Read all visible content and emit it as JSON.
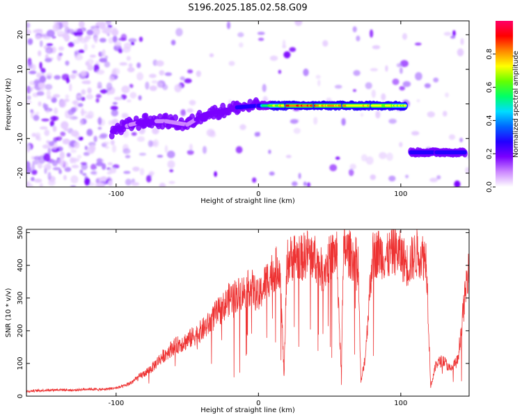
{
  "title": "S196.2025.185.02.58.G09",
  "chart_data": [
    {
      "type": "heatmap",
      "xlabel": "Height of straight line (km)",
      "ylabel": "Frequency (Hz)",
      "xlim": [
        -163,
        148
      ],
      "ylim": [
        -24,
        24
      ],
      "x_ticks": [
        -100,
        0,
        100
      ],
      "y_ticks": [
        -20,
        -10,
        0,
        10,
        20
      ],
      "colorbar": {
        "label": "Normalized spectral amplitude",
        "ticks": [
          "0.0",
          "0.2",
          "0.4",
          "0.6",
          "0.8"
        ],
        "range": [
          0,
          1
        ],
        "colormap": [
          "#ffffff",
          "#cc88ff",
          "#7a00ff",
          "#2200ff",
          "#0066ff",
          "#00ddff",
          "#00ff66",
          "#66ff00",
          "#ffff00",
          "#ff8800",
          "#ff0000",
          "#ff0066"
        ]
      },
      "ridge": [
        {
          "x": -103,
          "y": -8,
          "amp": 0.25
        },
        {
          "x": -90,
          "y": -6,
          "amp": 0.2
        },
        {
          "x": -80,
          "y": -5,
          "amp": 0.22
        },
        {
          "x": -65,
          "y": -5,
          "amp": 0.2
        },
        {
          "x": -50,
          "y": -6,
          "amp": 0.2
        },
        {
          "x": -38,
          "y": -3,
          "amp": 0.22
        },
        {
          "x": -25,
          "y": -2,
          "amp": 0.3
        },
        {
          "x": -15,
          "y": -1,
          "amp": 0.35
        },
        {
          "x": 0,
          "y": -0.5,
          "amp": 0.45
        },
        {
          "x": 20,
          "y": -0.5,
          "amp": 0.9
        },
        {
          "x": 40,
          "y": -0.5,
          "amp": 0.9
        },
        {
          "x": 60,
          "y": -0.5,
          "amp": 0.85
        },
        {
          "x": 80,
          "y": -0.5,
          "amp": 0.8
        },
        {
          "x": 103,
          "y": -0.5,
          "amp": 0.75
        },
        {
          "x": 107,
          "y": -14,
          "amp": 0.35
        },
        {
          "x": 125,
          "y": -14,
          "amp": 0.4
        },
        {
          "x": 145,
          "y": -14,
          "amp": 0.45
        }
      ]
    },
    {
      "type": "line",
      "xlabel": "Height of straight line (km)",
      "ylabel": "SNR (10 * v/v)",
      "xlim": [
        -163,
        148
      ],
      "ylim": [
        0,
        510
      ],
      "x_ticks": [
        -100,
        0,
        100
      ],
      "y_ticks": [
        0,
        100,
        200,
        300,
        400,
        500
      ],
      "series": [
        {
          "color": "#ee3333",
          "x": [
            -163,
            -150,
            -140,
            -130,
            -120,
            -110,
            -100,
            -95,
            -90,
            -85,
            -80,
            -75,
            -70,
            -65,
            -60,
            -55,
            -50,
            -45,
            -40,
            -35,
            -30,
            -25,
            -20,
            -15,
            -10,
            -5,
            0,
            5,
            10,
            15,
            18,
            20,
            25,
            30,
            35,
            40,
            45,
            50,
            55,
            58,
            60,
            65,
            70,
            72,
            75,
            80,
            85,
            90,
            95,
            100,
            105,
            108,
            112,
            118,
            121,
            125,
            130,
            135,
            140,
            145,
            148
          ],
          "y": [
            15,
            18,
            20,
            18,
            22,
            20,
            25,
            30,
            40,
            55,
            70,
            85,
            110,
            130,
            150,
            160,
            170,
            185,
            200,
            220,
            250,
            270,
            300,
            310,
            320,
            335,
            300,
            350,
            380,
            400,
            60,
            410,
            430,
            420,
            440,
            420,
            380,
            420,
            440,
            80,
            450,
            430,
            410,
            40,
            120,
            430,
            440,
            420,
            450,
            430,
            400,
            420,
            440,
            420,
            30,
            100,
            110,
            80,
            110,
            300,
            420
          ]
        }
      ]
    }
  ]
}
